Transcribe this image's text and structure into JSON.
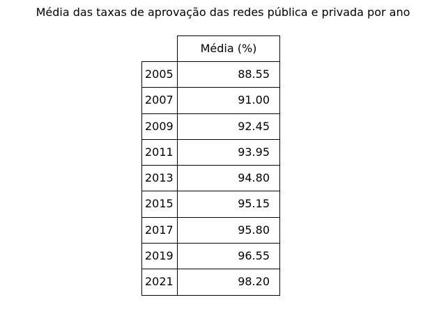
{
  "chart_data": {
    "type": "table",
    "title": "Média das taxas de aprovação das redes pública e privada por ano",
    "column_header": "Média (%)",
    "rows": [
      {
        "label": "2005",
        "value": "88.55"
      },
      {
        "label": "2007",
        "value": "91.00"
      },
      {
        "label": "2009",
        "value": "92.45"
      },
      {
        "label": "2011",
        "value": "93.95"
      },
      {
        "label": "2013",
        "value": "94.80"
      },
      {
        "label": "2015",
        "value": "95.15"
      },
      {
        "label": "2017",
        "value": "95.80"
      },
      {
        "label": "2019",
        "value": "96.55"
      },
      {
        "label": "2021",
        "value": "98.20"
      }
    ]
  }
}
